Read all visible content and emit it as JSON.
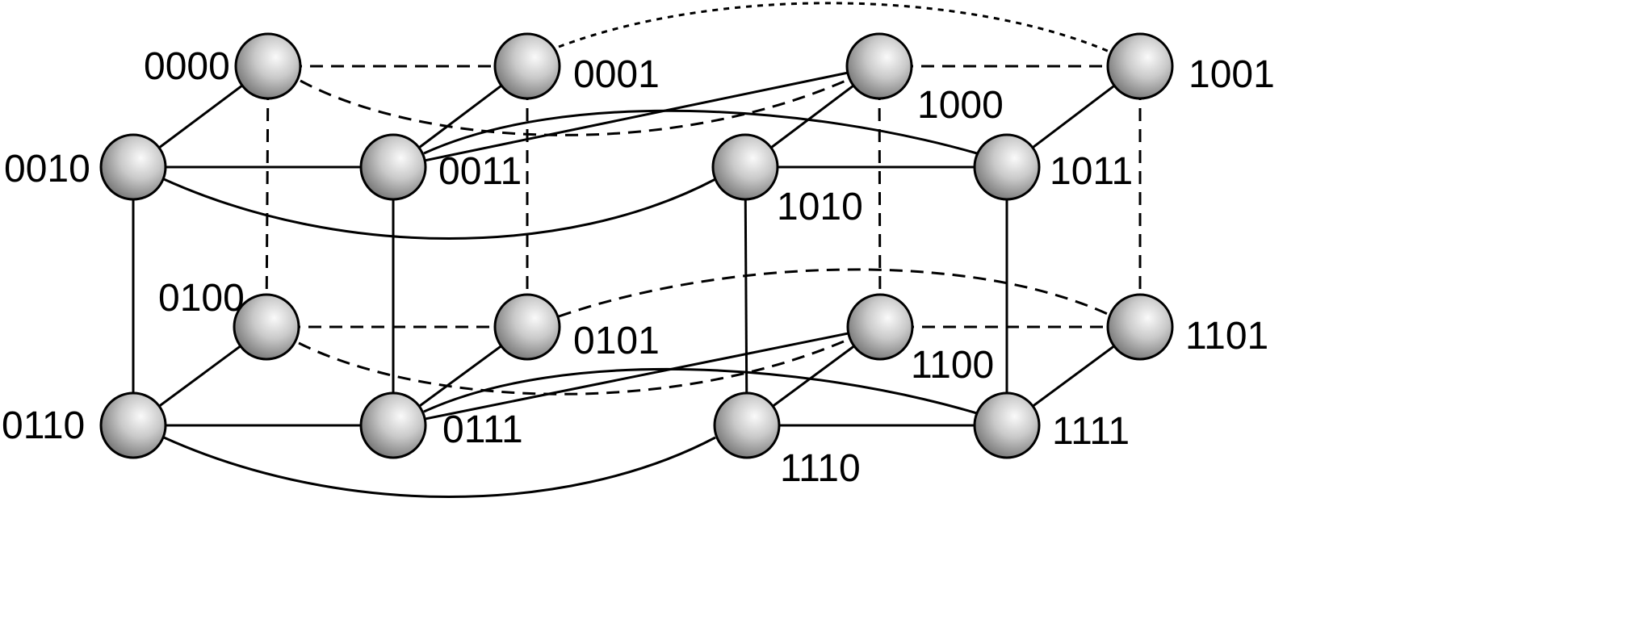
{
  "colors": {
    "background": "#ffffff",
    "line": "#000000",
    "node_highlight": "#fafafa",
    "node_mid": "#c9c9c9",
    "node_shadow": "#6f6f6f"
  },
  "nodes": [
    {
      "id": "0000",
      "label": "0000"
    },
    {
      "id": "0001",
      "label": "0001"
    },
    {
      "id": "1000",
      "label": "1000"
    },
    {
      "id": "1001",
      "label": "1001"
    },
    {
      "id": "0010",
      "label": "0010"
    },
    {
      "id": "0011",
      "label": "0011"
    },
    {
      "id": "1010",
      "label": "1010"
    },
    {
      "id": "1011",
      "label": "1011"
    },
    {
      "id": "0100",
      "label": "0100"
    },
    {
      "id": "0101",
      "label": "0101"
    },
    {
      "id": "1100",
      "label": "1100"
    },
    {
      "id": "1101",
      "label": "1101"
    },
    {
      "id": "0110",
      "label": "0110"
    },
    {
      "id": "0111",
      "label": "0111"
    },
    {
      "id": "1110",
      "label": "1110"
    },
    {
      "id": "1111",
      "label": "1111"
    }
  ],
  "edges": [
    {
      "from": "0000",
      "to": "0001",
      "style": "dashed"
    },
    {
      "from": "1000",
      "to": "1001",
      "style": "dashed"
    },
    {
      "from": "0100",
      "to": "0101",
      "style": "dashed"
    },
    {
      "from": "1100",
      "to": "1101",
      "style": "dashed"
    },
    {
      "from": "0000",
      "to": "0100",
      "style": "dashed"
    },
    {
      "from": "0001",
      "to": "0101",
      "style": "dashed"
    },
    {
      "from": "1000",
      "to": "1100",
      "style": "dashed"
    },
    {
      "from": "1001",
      "to": "1101",
      "style": "dashed"
    },
    {
      "from": "0000",
      "to": "1000",
      "style": "dashed"
    },
    {
      "from": "0001",
      "to": "1001",
      "style": "dotted"
    },
    {
      "from": "0100",
      "to": "1100",
      "style": "dashed"
    },
    {
      "from": "0101",
      "to": "1101",
      "style": "dashed"
    },
    {
      "from": "0010",
      "to": "0011",
      "style": "solid"
    },
    {
      "from": "1010",
      "to": "1011",
      "style": "solid"
    },
    {
      "from": "0110",
      "to": "0111",
      "style": "solid"
    },
    {
      "from": "1110",
      "to": "1111",
      "style": "solid"
    },
    {
      "from": "0010",
      "to": "0110",
      "style": "solid"
    },
    {
      "from": "0011",
      "to": "0111",
      "style": "solid"
    },
    {
      "from": "1010",
      "to": "1110",
      "style": "solid"
    },
    {
      "from": "1011",
      "to": "1111",
      "style": "solid"
    },
    {
      "from": "0010",
      "to": "1010",
      "style": "solid"
    },
    {
      "from": "0011",
      "to": "1011",
      "style": "solid"
    },
    {
      "from": "0110",
      "to": "1110",
      "style": "solid"
    },
    {
      "from": "0111",
      "to": "1111",
      "style": "solid"
    },
    {
      "from": "0000",
      "to": "0010",
      "style": "solid"
    },
    {
      "from": "0001",
      "to": "0011",
      "style": "solid"
    },
    {
      "from": "1000",
      "to": "1010",
      "style": "solid"
    },
    {
      "from": "1001",
      "to": "1011",
      "style": "solid"
    },
    {
      "from": "0100",
      "to": "0110",
      "style": "solid"
    },
    {
      "from": "0101",
      "to": "0111",
      "style": "solid"
    },
    {
      "from": "1100",
      "to": "1110",
      "style": "solid"
    },
    {
      "from": "1101",
      "to": "1111",
      "style": "solid"
    },
    {
      "from": "1000",
      "to": "0011",
      "style": "solid"
    },
    {
      "from": "1100",
      "to": "0111",
      "style": "solid"
    }
  ]
}
